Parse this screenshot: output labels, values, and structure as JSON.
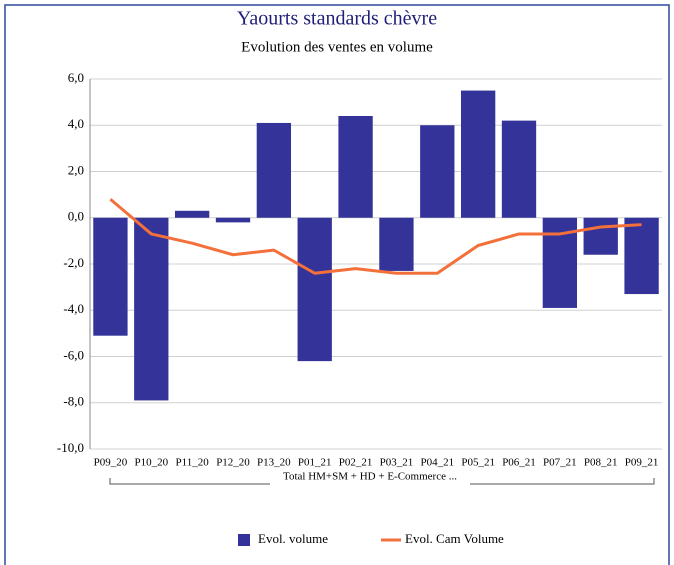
{
  "chart_data": {
    "type": "bar",
    "title": "Yaourts standards chèvre",
    "subtitle": "Evolution des ventes en volume",
    "group_label": "Total HM+SM + HD + E-Commerce ...",
    "categories": [
      "P09_20",
      "P10_20",
      "P11_20",
      "P12_20",
      "P13_20",
      "P01_21",
      "P02_21",
      "P03_21",
      "P04_21",
      "P05_21",
      "P06_21",
      "P07_21",
      "P08_21",
      "P09_21"
    ],
    "series": [
      {
        "name": "Evol. volume",
        "type": "bar",
        "color": "#333399",
        "values": [
          -5.1,
          -7.9,
          0.3,
          -0.2,
          4.1,
          -6.2,
          4.4,
          -2.3,
          4.0,
          5.5,
          4.2,
          -3.9,
          -1.6,
          -3.3
        ]
      },
      {
        "name": "Evol. Cam Volume",
        "type": "line",
        "color": "#f4703a",
        "values": [
          0.8,
          -0.7,
          -1.1,
          -1.6,
          -1.4,
          -2.4,
          -2.2,
          -2.4,
          -2.4,
          -1.2,
          -0.7,
          -0.7,
          -0.4,
          -0.3
        ]
      }
    ],
    "ylim": [
      -10,
      6
    ],
    "yticks": [
      {
        "value": -10,
        "label": "-10,0"
      },
      {
        "value": -8,
        "label": "-8,0"
      },
      {
        "value": -6,
        "label": "-6,0"
      },
      {
        "value": -4,
        "label": "-4,0"
      },
      {
        "value": -2,
        "label": "-2,0"
      },
      {
        "value": 0,
        "label": "0,0"
      },
      {
        "value": 2,
        "label": "2,0"
      },
      {
        "value": 4,
        "label": "4,0"
      },
      {
        "value": 6,
        "label": "6,0"
      }
    ],
    "grid": true
  }
}
